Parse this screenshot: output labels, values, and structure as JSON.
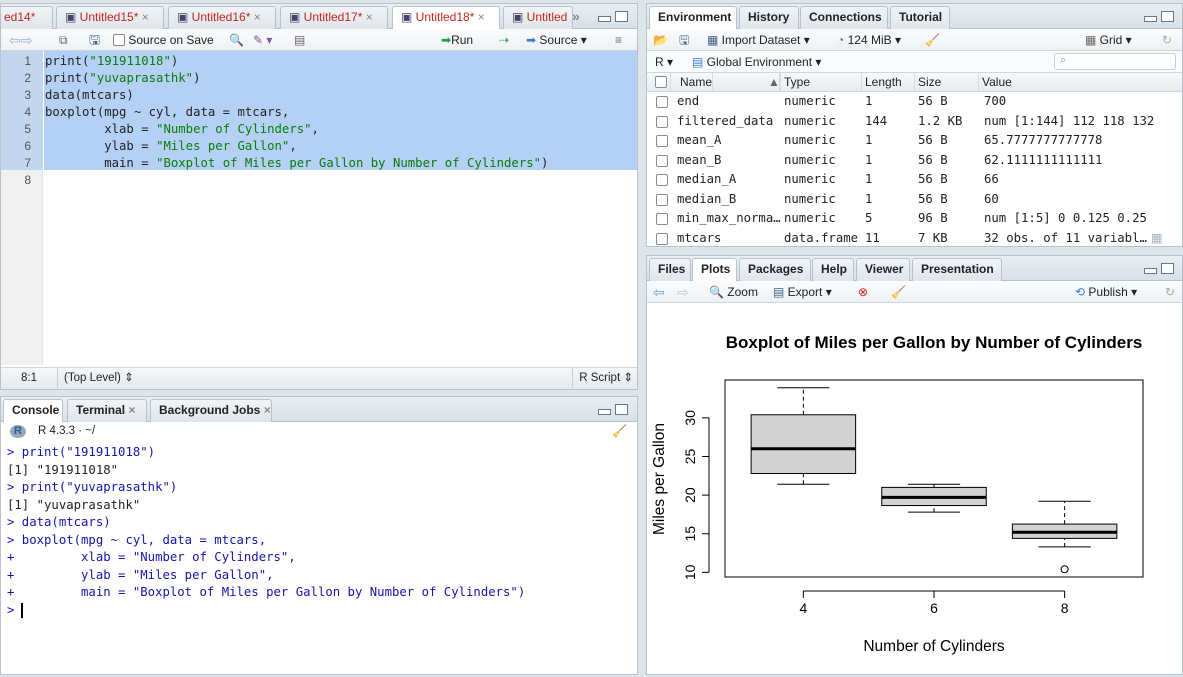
{
  "editor": {
    "tabs": [
      "ed14*",
      "Untitled15*",
      "Untitled16*",
      "Untitled17*",
      "Untitled18*",
      "Untitled"
    ],
    "toolbar": {
      "source_on_save": "Source on Save",
      "run": "Run",
      "source": "Source"
    },
    "line_numbers": [
      "1",
      "2",
      "3",
      "4",
      "5",
      "6",
      "7",
      "8"
    ],
    "lines": [
      {
        "text": "print(",
        "str": "\"191911018\"",
        "tail": ")"
      },
      {
        "text": "print(",
        "str": "\"yuvaprasathk\"",
        "tail": ")"
      },
      {
        "text": "data(mtcars)",
        "str": "",
        "tail": ""
      },
      {
        "text": "boxplot(mpg ~ cyl, data = mtcars,",
        "str": "",
        "tail": ""
      },
      {
        "text": "        xlab = ",
        "str": "\"Number of Cylinders\"",
        "tail": ","
      },
      {
        "text": "        ylab = ",
        "str": "\"Miles per Gallon\"",
        "tail": ","
      },
      {
        "text": "        main = ",
        "str": "\"Boxplot of Miles per Gallon by Number of Cylinders\"",
        "tail": ")"
      },
      {
        "text": "",
        "str": "",
        "tail": ""
      }
    ],
    "status": {
      "position": "8:1",
      "scope": "(Top Level)",
      "filetype": "R Script"
    }
  },
  "console": {
    "tabs": [
      "Console",
      "Terminal",
      "Background Jobs"
    ],
    "version": "R 4.3.3 · ~/",
    "lines": [
      {
        "t": "> print(\"191911018\")",
        "cmd": true
      },
      {
        "t": "[1] \"191911018\"",
        "cmd": false
      },
      {
        "t": "> print(\"yuvaprasathk\")",
        "cmd": true
      },
      {
        "t": "[1] \"yuvaprasathk\"",
        "cmd": false
      },
      {
        "t": "> data(mtcars)",
        "cmd": true
      },
      {
        "t": "> boxplot(mpg ~ cyl, data = mtcars,",
        "cmd": true
      },
      {
        "t": "+         xlab = \"Number of Cylinders\",",
        "cmd": true
      },
      {
        "t": "+         ylab = \"Miles per Gallon\",",
        "cmd": true
      },
      {
        "t": "+         main = \"Boxplot of Miles per Gallon by Number of Cylinders\")",
        "cmd": true
      },
      {
        "t": "> ",
        "cmd": true
      }
    ]
  },
  "environment": {
    "tabs": [
      "Environment",
      "History",
      "Connections",
      "Tutorial"
    ],
    "toolbar": {
      "import": "Import Dataset",
      "memory": "124 MiB",
      "grid": "Grid"
    },
    "r_lang": "R",
    "scope": "Global Environment",
    "search_placeholder": "",
    "columns": [
      "Name",
      "Type",
      "Length",
      "Size",
      "Value"
    ],
    "rows": [
      {
        "name": "end",
        "type": "numeric",
        "length": "1",
        "size": "56 B",
        "value": "700"
      },
      {
        "name": "filtered_data",
        "type": "numeric",
        "length": "144",
        "size": "1.2 KB",
        "value": "num [1:144] 112 118 132 …"
      },
      {
        "name": "mean_A",
        "type": "numeric",
        "length": "1",
        "size": "56 B",
        "value": "65.7777777777778"
      },
      {
        "name": "mean_B",
        "type": "numeric",
        "length": "1",
        "size": "56 B",
        "value": "62.1111111111111"
      },
      {
        "name": "median_A",
        "type": "numeric",
        "length": "1",
        "size": "56 B",
        "value": "66"
      },
      {
        "name": "median_B",
        "type": "numeric",
        "length": "1",
        "size": "56 B",
        "value": "60"
      },
      {
        "name": "min_max_norma…",
        "type": "numeric",
        "length": "5",
        "size": "96 B",
        "value": "num [1:5] 0 0.125 0.25 0…"
      },
      {
        "name": "mtcars",
        "type": "data.frame",
        "length": "11",
        "size": "7 KB",
        "value": "32 obs. of 11 variabl…"
      }
    ]
  },
  "plots_pane": {
    "tabs": [
      "Files",
      "Plots",
      "Packages",
      "Help",
      "Viewer",
      "Presentation"
    ],
    "toolbar": {
      "zoom": "Zoom",
      "export": "Export",
      "publish": "Publish"
    }
  },
  "chart_data": {
    "type": "boxplot",
    "title": "Boxplot of Miles per Gallon by Number of Cylinders",
    "xlabel": "Number of Cylinders",
    "ylabel": "Miles per Gallon",
    "categories": [
      "4",
      "6",
      "8"
    ],
    "boxes": [
      {
        "min": 21.4,
        "q1": 22.8,
        "median": 26.0,
        "q3": 30.4,
        "max": 33.9,
        "outliers": []
      },
      {
        "min": 17.8,
        "q1": 18.65,
        "median": 19.7,
        "q3": 21.0,
        "max": 21.4,
        "outliers": []
      },
      {
        "min": 13.3,
        "q1": 14.4,
        "median": 15.2,
        "q3": 16.25,
        "max": 19.2,
        "outliers": [
          10.4
        ]
      }
    ],
    "yticks": [
      10,
      15,
      20,
      25,
      30
    ],
    "ylim": [
      9.4,
      34.9
    ],
    "colors": {
      "box_fill": "#d3d3d3"
    }
  }
}
